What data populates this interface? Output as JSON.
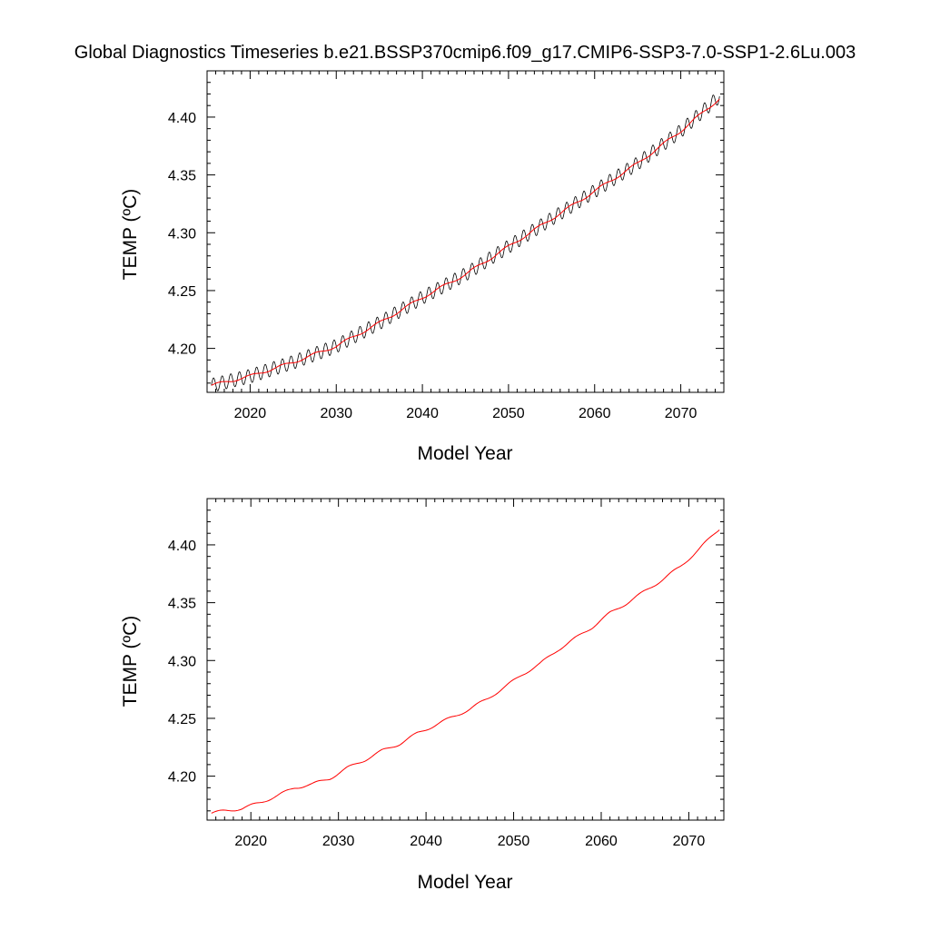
{
  "title": "Global Diagnostics Timeseries b.e21.BSSP370cmip6.f09_g17.CMIP6-SSP3-7.0-SSP1-2.6Lu.003",
  "chart_data": [
    {
      "type": "line",
      "xlabel": "Model Year",
      "ylabel": "TEMP (ºC)",
      "xlim": [
        2015,
        2075
      ],
      "ylim": [
        4.162,
        4.44
      ],
      "x_ticks": [
        2020,
        2030,
        2040,
        2050,
        2060,
        2070
      ],
      "x_tick_labels": [
        "2020",
        "2030",
        "2040",
        "2050",
        "2060",
        "2070"
      ],
      "y_ticks": [
        4.2,
        4.25,
        4.3,
        4.35,
        4.4
      ],
      "y_tick_labels": [
        "4.20",
        "4.25",
        "4.30",
        "4.35",
        "4.40"
      ],
      "grid": false,
      "series": [
        {
          "color": "#000000",
          "style": "monthly values with seasonal cycle (amplitude ~0.006)",
          "x": [
            2015.5,
            2020,
            2025,
            2030,
            2035,
            2040,
            2045,
            2050,
            2055,
            2060,
            2065,
            2070,
            2074.5
          ],
          "values": [
            4.168,
            4.176,
            4.188,
            4.202,
            4.222,
            4.244,
            4.264,
            4.288,
            4.312,
            4.336,
            4.36,
            4.388,
            4.418
          ]
        },
        {
          "color": "#ff0000",
          "style": "annual running mean",
          "x": [
            2015.5,
            2020,
            2025,
            2030,
            2035,
            2040,
            2045,
            2050,
            2055,
            2060,
            2065,
            2070,
            2074.5
          ],
          "values": [
            4.168,
            4.176,
            4.188,
            4.202,
            4.222,
            4.244,
            4.264,
            4.288,
            4.312,
            4.336,
            4.36,
            4.388,
            4.416
          ]
        }
      ]
    },
    {
      "type": "line",
      "xlabel": "Model Year",
      "ylabel": "TEMP (ºC)",
      "xlim": [
        2015,
        2074
      ],
      "ylim": [
        4.162,
        4.44
      ],
      "x_ticks": [
        2020,
        2030,
        2040,
        2050,
        2060,
        2070
      ],
      "x_tick_labels": [
        "2020",
        "2030",
        "2040",
        "2050",
        "2060",
        "2070"
      ],
      "y_ticks": [
        4.2,
        4.25,
        4.3,
        4.35,
        4.4
      ],
      "y_tick_labels": [
        "4.20",
        "4.25",
        "4.30",
        "4.35",
        "4.40"
      ],
      "grid": false,
      "series": [
        {
          "color": "#ff0000",
          "style": "annual running mean",
          "x": [
            2015.5,
            2017,
            2019,
            2021,
            2023,
            2025,
            2027,
            2029,
            2031,
            2033,
            2035,
            2037,
            2039,
            2041,
            2043,
            2045,
            2047,
            2049,
            2051,
            2053,
            2055,
            2057,
            2059,
            2061,
            2063,
            2065,
            2067,
            2069,
            2071,
            2073.5
          ],
          "values": [
            4.168,
            4.17,
            4.172,
            4.177,
            4.183,
            4.19,
            4.193,
            4.198,
            4.207,
            4.214,
            4.222,
            4.228,
            4.237,
            4.244,
            4.251,
            4.258,
            4.267,
            4.277,
            4.288,
            4.297,
            4.309,
            4.319,
            4.329,
            4.341,
            4.35,
            4.36,
            4.37,
            4.381,
            4.395,
            4.414
          ]
        }
      ]
    }
  ]
}
